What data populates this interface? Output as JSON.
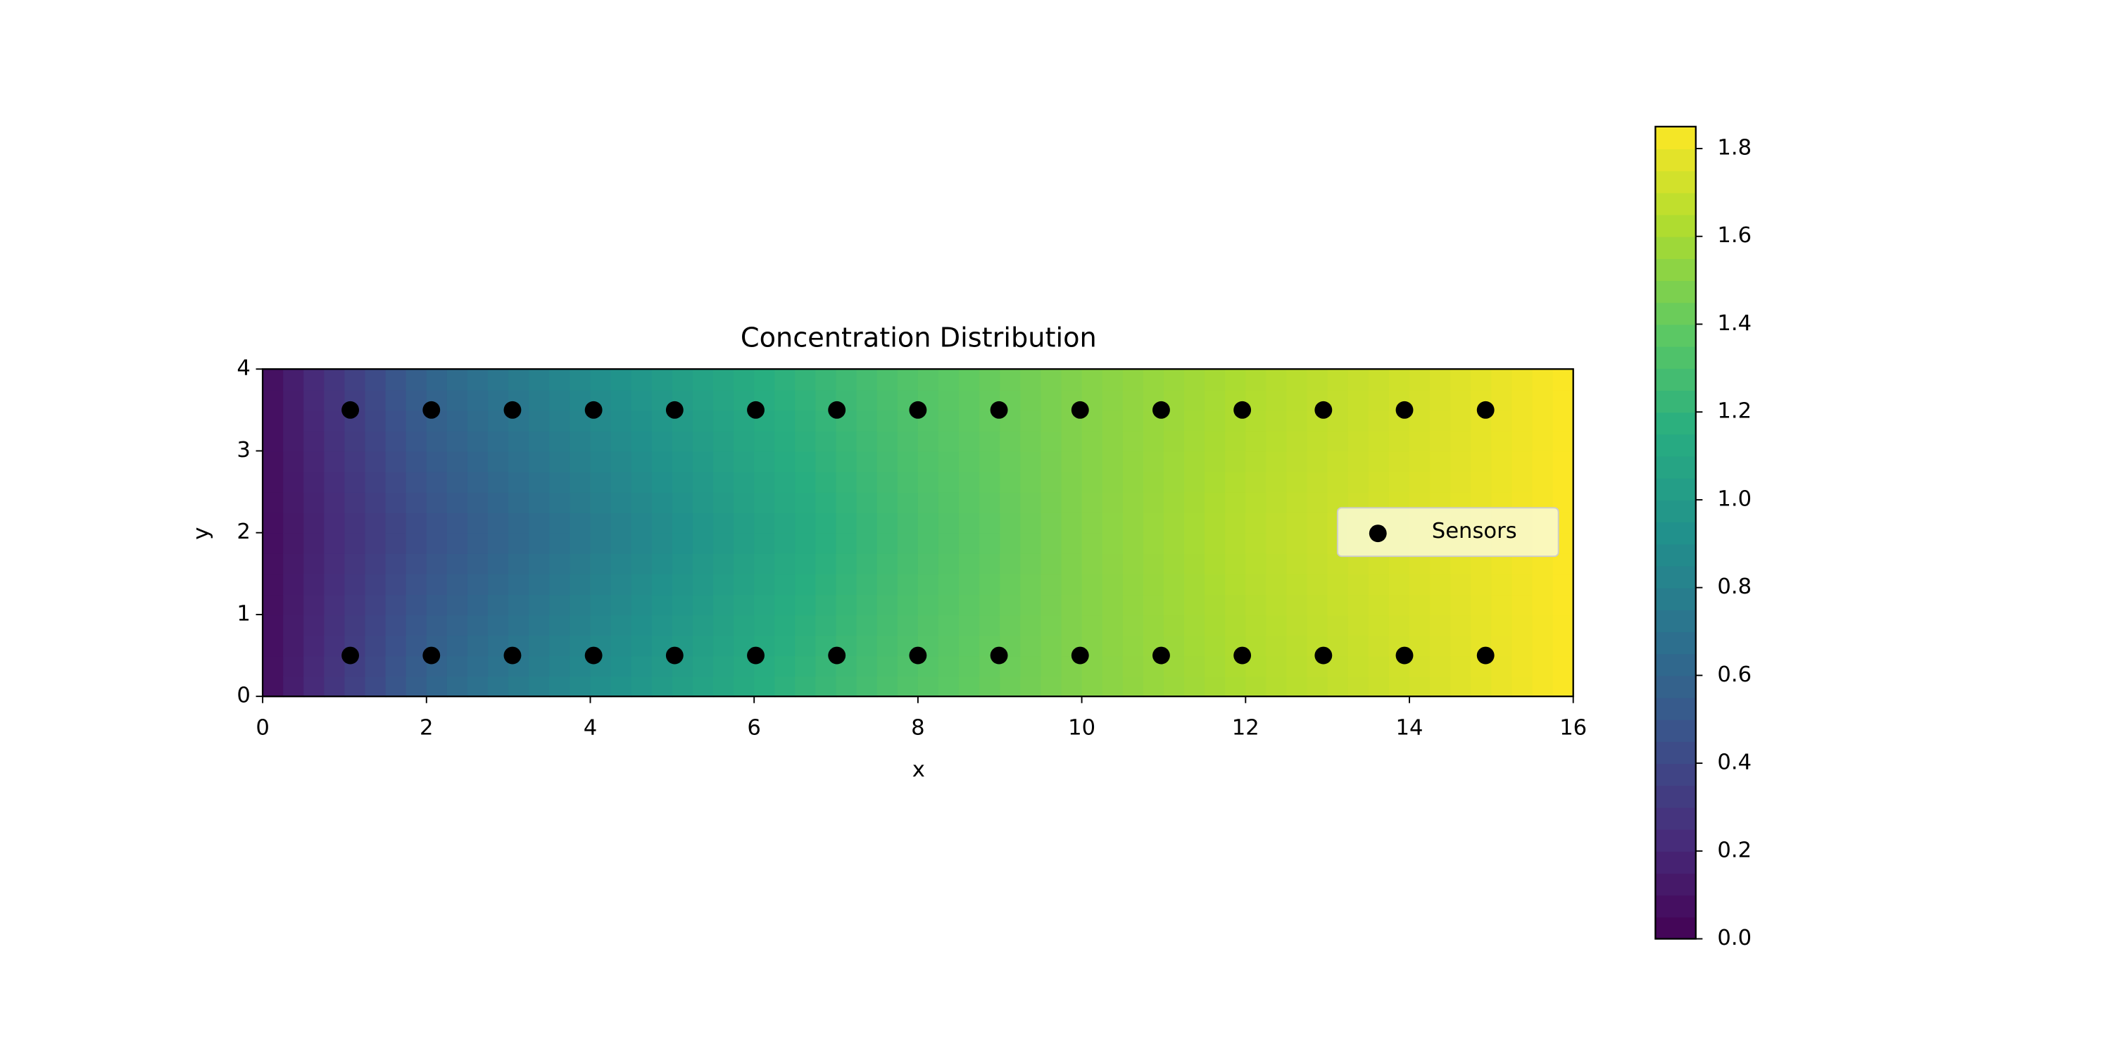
{
  "chart_data": {
    "type": "contourf",
    "title": "Concentration Distribution",
    "x_label": "x",
    "y_label": "y",
    "xlim": [
      0,
      16
    ],
    "xticks": [
      0,
      2,
      4,
      6,
      8,
      10,
      12,
      14,
      16
    ],
    "ylim": [
      0,
      4
    ],
    "yticks": [
      0,
      1,
      2,
      3,
      4
    ],
    "contour": {
      "x": [
        0,
        2,
        4,
        6,
        8,
        10,
        12,
        14,
        16
      ],
      "y": [
        0,
        2,
        4
      ],
      "z": [
        [
          0.05,
          0.6,
          0.9,
          1.15,
          1.35,
          1.5,
          1.62,
          1.72,
          1.85
        ],
        [
          0.05,
          0.45,
          0.75,
          1.05,
          1.3,
          1.5,
          1.65,
          1.75,
          1.85
        ],
        [
          0.05,
          0.6,
          0.9,
          1.15,
          1.35,
          1.5,
          1.62,
          1.72,
          1.85
        ]
      ]
    },
    "colormap": "viridis",
    "clim": [
      0,
      1.85
    ],
    "colorbar_ticks": [
      {
        "value": 0,
        "label": "0.0"
      },
      {
        "value": 0.2,
        "label": "0.2"
      },
      {
        "value": 0.4,
        "label": "0.4"
      },
      {
        "value": 0.6,
        "label": "0.6"
      },
      {
        "value": 0.8,
        "label": "0.8"
      },
      {
        "value": 1.0,
        "label": "1.0"
      },
      {
        "value": 1.2,
        "label": "1.2"
      },
      {
        "value": 1.4,
        "label": "1.4"
      },
      {
        "value": 1.6,
        "label": "1.6"
      },
      {
        "value": 1.8,
        "label": "1.8"
      }
    ],
    "series": [
      {
        "name": "Sensors",
        "type": "scatter",
        "color": "#000000",
        "x": [
          1.07,
          2.06,
          3.05,
          4.04,
          5.03,
          6.02,
          7.01,
          8.0,
          8.99,
          9.98,
          10.97,
          11.96,
          12.95,
          13.94,
          14.93,
          1.07,
          2.06,
          3.05,
          4.04,
          5.03,
          6.02,
          7.01,
          8.0,
          8.99,
          9.98,
          10.97,
          11.96,
          12.95,
          13.94,
          14.93
        ],
        "values": [
          3.5,
          3.5,
          3.5,
          3.5,
          3.5,
          3.5,
          3.5,
          3.5,
          3.5,
          3.5,
          3.5,
          3.5,
          3.5,
          3.5,
          3.5,
          0.5,
          0.5,
          0.5,
          0.5,
          0.5,
          0.5,
          0.5,
          0.5,
          0.5,
          0.5,
          0.5,
          0.5,
          0.5,
          0.5,
          0.5
        ]
      }
    ],
    "legend": "right"
  }
}
